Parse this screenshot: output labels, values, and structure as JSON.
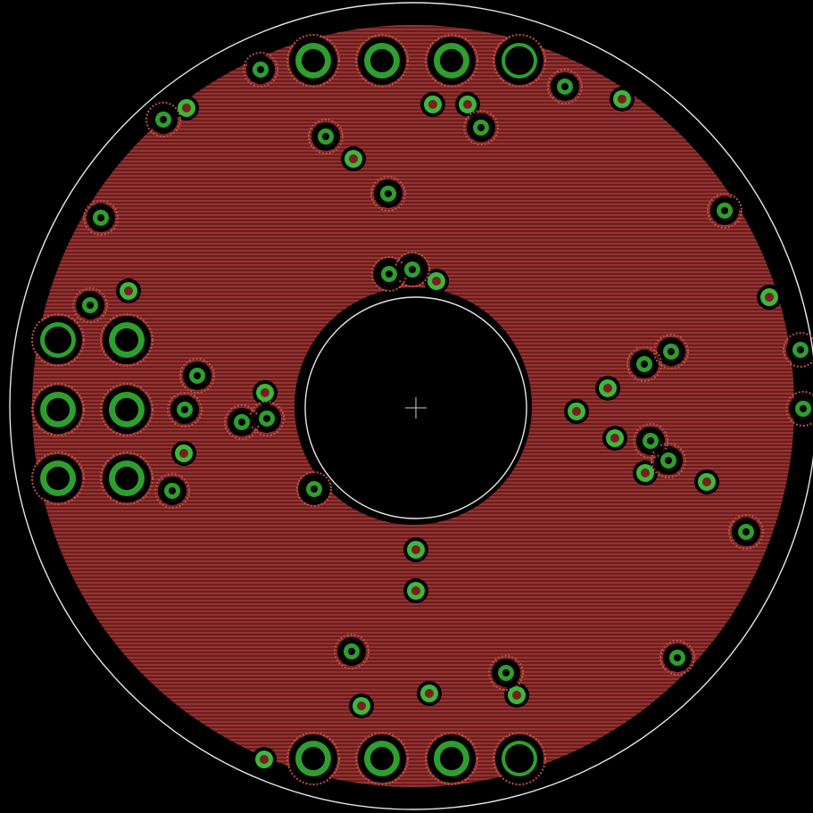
{
  "view": {
    "title": "",
    "background_color": "#000000"
  },
  "board": {
    "shape": "annular-disc",
    "outline_color": "#e6e6e6",
    "copper_pour_color": "#7a1f1f",
    "copper_hatch_color": "#c0504d",
    "clearance_color": "#000000",
    "pad_color": "#2e9e2e",
    "via_color": "#3cb83c",
    "pad_drill_color": "#000000",
    "origin_marker_color": "#cfcfcf",
    "origin_marker_icon": "crosshair-icon"
  },
  "legend": {
    "pad_icon": "through-hole-pad-icon",
    "via_icon": "via-icon",
    "thermal_relief_icon": "thermal-relief-icon"
  }
}
